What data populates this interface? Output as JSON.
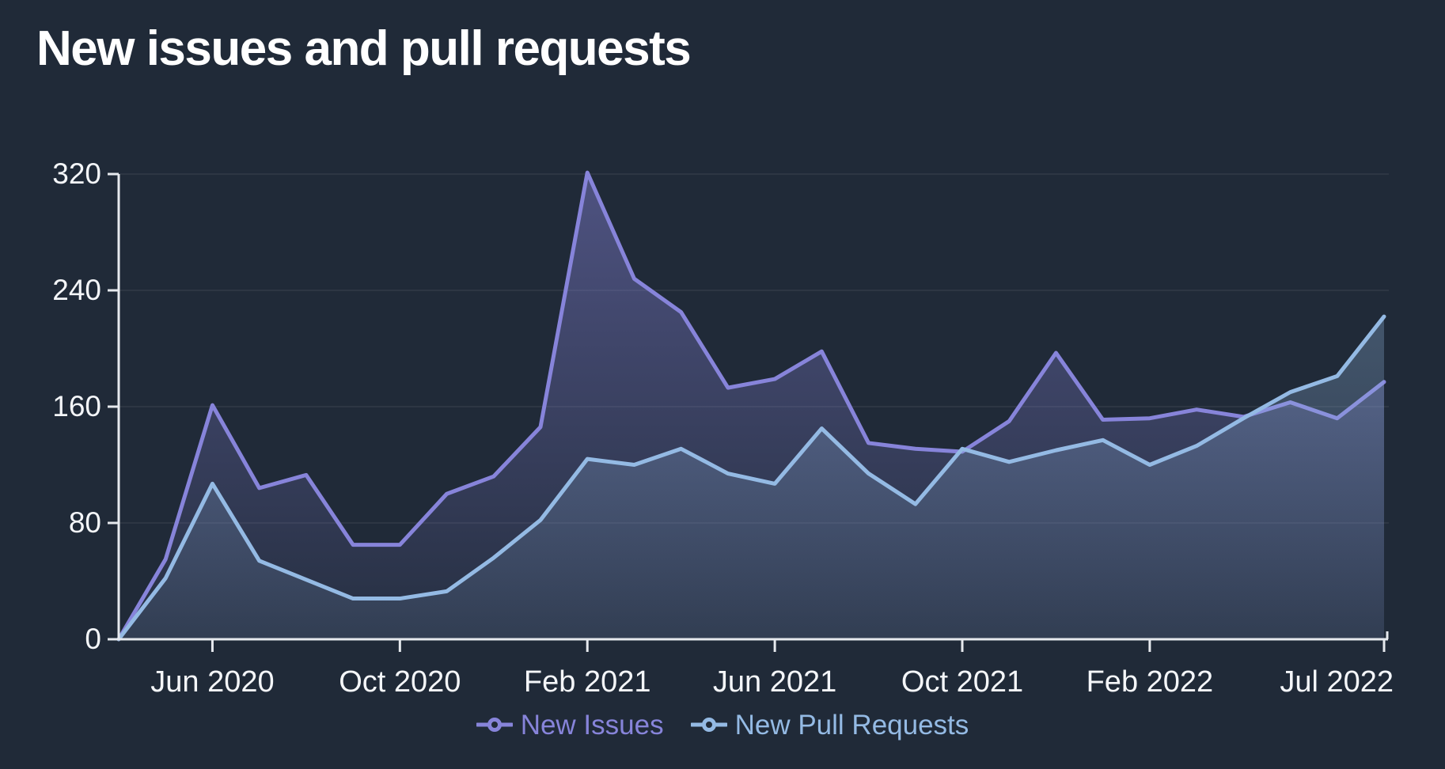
{
  "chart": {
    "title": "New issues and pull requests"
  },
  "chart_data": {
    "type": "area",
    "title": "New issues and pull requests",
    "x": [
      "Apr 2020",
      "May 2020",
      "Jun 2020",
      "Jul 2020",
      "Aug 2020",
      "Sep 2020",
      "Oct 2020",
      "Nov 2020",
      "Dec 2020",
      "Jan 2021",
      "Feb 2021",
      "Mar 2021",
      "Apr 2021",
      "May 2021",
      "Jun 2021",
      "Jul 2021",
      "Aug 2021",
      "Sep 2021",
      "Oct 2021",
      "Nov 2021",
      "Dec 2021",
      "Jan 2022",
      "Feb 2022",
      "Mar 2022",
      "Apr 2022",
      "May 2022",
      "Jun 2022",
      "Jul 2022"
    ],
    "x_ticks": [
      {
        "index": 2,
        "label": "Jun 2020"
      },
      {
        "index": 6,
        "label": "Oct 2020"
      },
      {
        "index": 10,
        "label": "Feb 2021"
      },
      {
        "index": 14,
        "label": "Jun 2021"
      },
      {
        "index": 18,
        "label": "Oct 2021"
      },
      {
        "index": 22,
        "label": "Feb 2022"
      },
      {
        "index": 27,
        "label": "Jul 2022"
      }
    ],
    "y_ticks": [
      0,
      80,
      160,
      240,
      320
    ],
    "ylim": [
      0,
      320
    ],
    "grid": true,
    "legend_position": "bottom",
    "series": [
      {
        "name": "New Issues",
        "color": "#8784da",
        "values": [
          0,
          55,
          161,
          104,
          113,
          65,
          65,
          100,
          112,
          146,
          321,
          248,
          225,
          173,
          179,
          198,
          135,
          131,
          129,
          150,
          197,
          151,
          152,
          158,
          153,
          163,
          152,
          177
        ]
      },
      {
        "name": "New Pull Requests",
        "color": "#94bae4",
        "values": [
          0,
          42,
          107,
          54,
          41,
          28,
          28,
          33,
          56,
          82,
          124,
          120,
          131,
          114,
          107,
          145,
          114,
          93,
          131,
          122,
          130,
          137,
          120,
          133,
          152,
          170,
          181,
          222
        ]
      }
    ],
    "colors": {
      "background": "#202a38",
      "axis": "#e6e9ee",
      "tick_label": "#f4f6f9",
      "gridline": "rgba(255,255,255,0.06)"
    }
  }
}
